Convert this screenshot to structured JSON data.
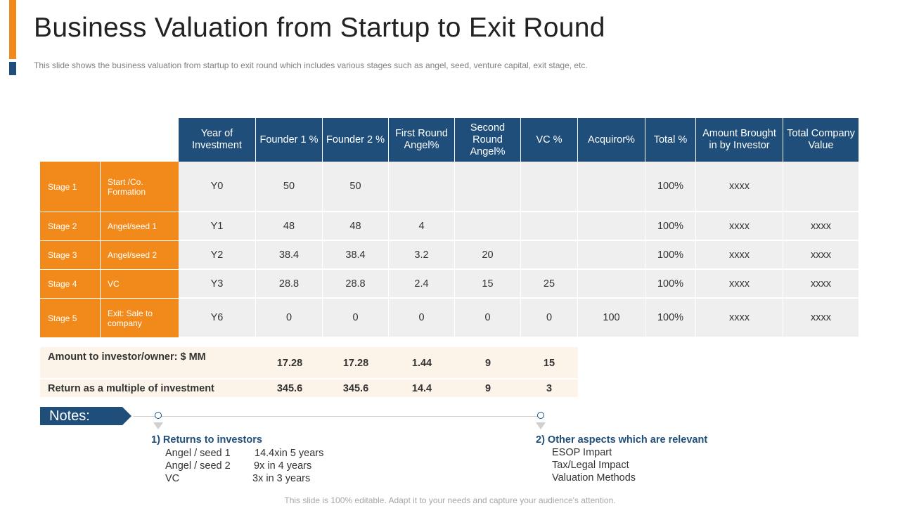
{
  "slide": {
    "title": "Business Valuation from Startup to Exit Round",
    "subtitle": "This slide shows the business valuation  from startup to exit round  which includes various  stages such as angel,  seed, venture  capital, exit stage, etc.",
    "footer": "This slide is 100% editable. Adapt it to your needs and capture your audience's attention.",
    "colors": {
      "accent_orange": "#f28a1b",
      "header_blue": "#1e4e79",
      "cell_grey": "#efefef",
      "summary_bg": "#fdf4e9"
    }
  },
  "table": {
    "headers": [
      "Year of Investment",
      "Founder 1 %",
      "Founder 2 %",
      "First Round Angel%",
      "Second Round Angel%",
      "VC %",
      "Acquiror%",
      "Total %",
      "Amount Brought in by Investor",
      "Total Company Value"
    ],
    "rows": [
      {
        "stage": "Stage 1",
        "desc": "Start /Co. Formation",
        "cells": [
          "Y0",
          "50",
          "50",
          "",
          "",
          "",
          "",
          "100%",
          "xxxx",
          ""
        ]
      },
      {
        "stage": "Stage 2",
        "desc": "Angel/seed 1",
        "cells": [
          "Y1",
          "48",
          "48",
          "4",
          "",
          "",
          "",
          "100%",
          "xxxx",
          "xxxx"
        ]
      },
      {
        "stage": "Stage 3",
        "desc": "Angel/seed 2",
        "cells": [
          "Y2",
          "38.4",
          "38.4",
          "3.2",
          "20",
          "",
          "",
          "100%",
          "xxxx",
          "xxxx"
        ]
      },
      {
        "stage": "Stage 4",
        "desc": "VC",
        "cells": [
          "Y3",
          "28.8",
          "28.8",
          "2.4",
          "15",
          "25",
          "",
          "100%",
          "xxxx",
          "xxxx"
        ]
      },
      {
        "stage": "Stage 5",
        "desc": "Exit: Sale to company",
        "cells": [
          "Y6",
          "0",
          "0",
          "0",
          "0",
          "0",
          "100",
          "100%",
          "xxxx",
          "xxxx"
        ]
      }
    ],
    "summary": [
      {
        "label": "Amount  to investor/owner: $ MM",
        "values": [
          "17.28",
          "17.28",
          "1.44",
          "9",
          "15"
        ]
      },
      {
        "label": "Return as a multiple of investment",
        "values": [
          "345.6",
          "345.6",
          "14.4",
          "9",
          "3"
        ]
      }
    ]
  },
  "notes": {
    "tag": "Notes:",
    "left": {
      "title": "1) Returns to investors",
      "lines": [
        {
          "name": "Angel  / seed 1",
          "value": "14.4xin 5 years"
        },
        {
          "name": "Angel  / seed 2",
          "value": "9x in 4 years"
        },
        {
          "name": "VC",
          "value": "3x in 3 years"
        }
      ]
    },
    "right": {
      "title": "2) Other aspects which are relevant",
      "lines": [
        "ESOP Impart",
        "Tax/Legal Impact",
        "Valuation Methods"
      ]
    }
  }
}
